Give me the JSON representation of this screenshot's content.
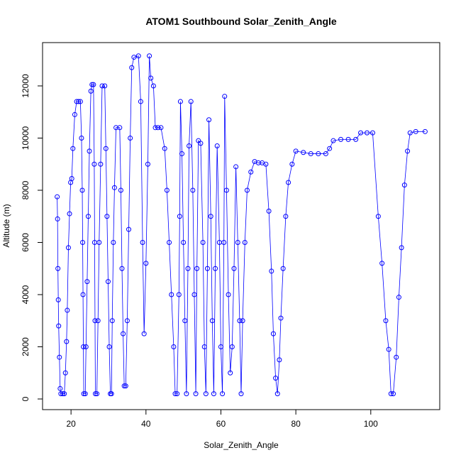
{
  "chart_data": {
    "type": "line",
    "title": "ATOM1 Southbound Solar_Zenith_Angle",
    "xlabel": "Solar_Zenith_Angle",
    "ylabel": "Altitude (m)",
    "color": "#0000ff",
    "x": [
      16.3,
      16.4,
      16.5,
      16.6,
      16.7,
      16.9,
      17.1,
      17.3,
      17.8,
      18.2,
      18.5,
      18.8,
      19.0,
      19.3,
      19.6,
      19.9,
      20.2,
      20.5,
      21.0,
      21.5,
      22.0,
      22.5,
      22.8,
      23.0,
      23.1,
      23.2,
      23.3,
      23.4,
      23.8,
      24.0,
      24.3,
      24.6,
      24.9,
      25.3,
      25.6,
      26.0,
      26.2,
      26.3,
      26.4,
      26.5,
      26.9,
      27.2,
      27.5,
      27.9,
      28.3,
      29.0,
      29.3,
      29.6,
      29.9,
      30.2,
      30.5,
      30.8,
      31.0,
      31.3,
      31.6,
      32.0,
      33.0,
      33.3,
      33.6,
      33.9,
      34.2,
      34.6,
      35.0,
      35.4,
      35.8,
      36.2,
      36.8,
      38.0,
      38.6,
      39.1,
      39.5,
      40.0,
      40.5,
      40.9,
      41.3,
      42.0,
      42.5,
      43.2,
      44.0,
      45.0,
      45.6,
      46.2,
      46.8,
      47.4,
      47.8,
      48.3,
      48.8,
      49.0,
      49.2,
      49.6,
      50.0,
      50.4,
      50.8,
      51.2,
      51.5,
      52.0,
      52.5,
      52.9,
      53.3,
      53.6,
      54.0,
      54.6,
      55.2,
      55.6,
      56.0,
      56.4,
      56.8,
      57.3,
      57.7,
      58.1,
      58.5,
      59.0,
      59.6,
      60.0,
      60.4,
      60.8,
      61.0,
      61.5,
      62.0,
      62.5,
      63.0,
      63.5,
      64.0,
      64.5,
      65.0,
      65.4,
      65.8,
      66.4,
      67.0,
      68.0,
      69.0,
      70.0,
      71.0,
      72.0,
      72.8,
      73.5,
      74.0,
      74.6,
      75.1,
      75.6,
      76.0,
      76.6,
      77.3,
      78.0,
      79.0,
      80.0,
      82.0,
      84.0,
      86.0,
      88.0,
      89.0,
      90.0,
      92.0,
      94.0,
      96.0,
      97.3,
      99.0,
      100.5,
      102.0,
      103.0,
      104.0,
      104.8,
      105.4,
      106.0,
      106.8,
      107.5,
      108.2,
      109.0,
      109.8,
      110.5,
      112.0,
      114.5
    ],
    "values": [
      7750,
      6900,
      5000,
      3800,
      2800,
      1600,
      400,
      200,
      200,
      200,
      1000,
      2200,
      3400,
      5800,
      7100,
      8300,
      8450,
      9600,
      10900,
      11400,
      11400,
      11400,
      10000,
      8000,
      6000,
      4000,
      2000,
      200,
      200,
      2000,
      4500,
      7000,
      9500,
      11800,
      12050,
      12050,
      9000,
      6000,
      3000,
      200,
      200,
      3000,
      6000,
      9000,
      12000,
      12000,
      9600,
      7000,
      4500,
      2000,
      200,
      200,
      3000,
      6000,
      8100,
      10400,
      10400,
      8000,
      5000,
      2500,
      500,
      500,
      3000,
      6500,
      10000,
      12700,
      13100,
      13150,
      11400,
      6000,
      2500,
      5200,
      9000,
      13150,
      12300,
      12000,
      10400,
      10400,
      10400,
      9600,
      8000,
      6000,
      4000,
      2000,
      200,
      200,
      4000,
      7000,
      11400,
      9400,
      6000,
      3000,
      200,
      5000,
      9700,
      11400,
      8000,
      4000,
      200,
      5000,
      9900,
      9800,
      6000,
      2000,
      200,
      5000,
      10700,
      7000,
      3000,
      200,
      5000,
      9700,
      6000,
      2000,
      200,
      6000,
      11600,
      8000,
      4000,
      1000,
      2000,
      5000,
      8900,
      6000,
      3000,
      200,
      3000,
      6000,
      8000,
      8700,
      9100,
      9050,
      9050,
      9000,
      7200,
      4900,
      2500,
      800,
      200,
      1500,
      3100,
      5000,
      7000,
      8300,
      9000,
      9500,
      9450,
      9400,
      9400,
      9400,
      9600,
      9900,
      9950,
      9950,
      9950,
      10200,
      10200,
      10200,
      7000,
      5200,
      3000,
      1900,
      200,
      200,
      1600,
      3900,
      5800,
      8200,
      9500,
      10200,
      10250,
      10250
    ],
    "xlim": [
      12.4,
      118.4
    ],
    "ylim": [
      -408,
      13660
    ],
    "xticks": [
      20,
      40,
      60,
      80,
      100
    ],
    "yticks": [
      0,
      2000,
      4000,
      6000,
      8000,
      10000,
      12000
    ]
  }
}
